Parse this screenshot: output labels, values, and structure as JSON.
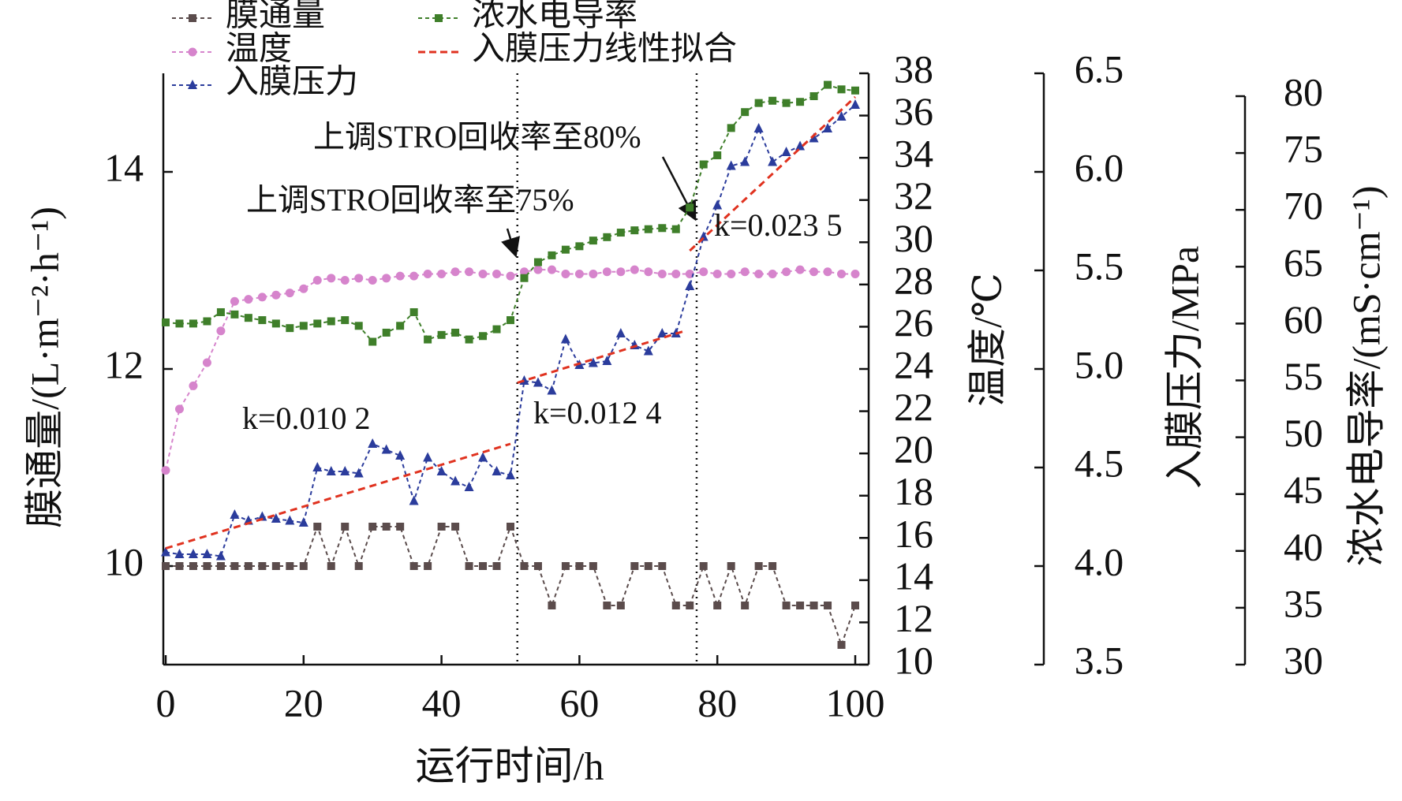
{
  "chart_data": {
    "type": "line",
    "x_label": "运行时间/h",
    "y_label": "膜通量/(L·m⁻²·h⁻¹)",
    "y2_label": "温度/℃",
    "y3_label": "入膜压力/MPa",
    "y4_label": "浓水电导率/(mS·cm⁻¹)",
    "x": [
      0,
      2,
      4,
      6,
      8,
      10,
      12,
      14,
      16,
      18,
      20,
      22,
      24,
      26,
      28,
      30,
      32,
      34,
      36,
      38,
      40,
      42,
      44,
      46,
      48,
      50,
      52,
      54,
      56,
      58,
      60,
      62,
      64,
      66,
      68,
      70,
      72,
      74,
      76,
      78,
      80,
      82,
      84,
      86,
      88,
      90,
      92,
      94,
      96,
      98,
      100
    ],
    "xlim": [
      0,
      100
    ],
    "xticks": [
      0,
      20,
      40,
      60,
      80,
      100
    ],
    "ylim": [
      9,
      15
    ],
    "yticks": [
      10,
      12,
      14
    ],
    "y2lim": [
      10,
      38
    ],
    "y2ticks": [
      10,
      12,
      14,
      16,
      18,
      20,
      22,
      24,
      26,
      28,
      30,
      32,
      34,
      36,
      38
    ],
    "y3lim": [
      3.5,
      6.5
    ],
    "y3ticks": [
      3.5,
      {
        "value": 4,
        "label": "4.0"
      },
      4.5,
      {
        "value": 5,
        "label": "5.0"
      },
      5.5,
      {
        "value": 6,
        "label": "6.0"
      },
      6.5
    ],
    "y4lim": [
      30,
      80
    ],
    "y4ticks": [
      30,
      35,
      40,
      45,
      50,
      55,
      60,
      65,
      70,
      75,
      80
    ],
    "series": [
      {
        "name": "膜通量",
        "color": "#5b4c4c",
        "marker": "square",
        "axis": "y",
        "values": [
          10,
          10,
          10,
          10,
          10,
          10,
          10,
          10,
          10,
          10,
          10,
          10.4,
          10,
          10.4,
          10,
          10.4,
          10.4,
          10.4,
          10,
          10,
          10.4,
          10.4,
          10,
          10,
          10,
          10.4,
          10,
          10,
          9.6,
          10,
          10,
          10,
          9.6,
          9.6,
          10,
          10,
          10,
          9.6,
          9.6,
          10,
          9.6,
          10,
          9.6,
          10,
          10,
          9.6,
          9.6,
          9.6,
          9.6,
          9.2,
          9.6
        ]
      },
      {
        "name": "温度",
        "color": "#d684cc",
        "marker": "circle",
        "axis": "y2",
        "values": [
          19.2,
          22.1,
          23.2,
          24.3,
          25.8,
          27.2,
          27.3,
          27.4,
          27.5,
          27.6,
          27.8,
          28.2,
          28.3,
          28.2,
          28.3,
          28.2,
          28.3,
          28.4,
          28.4,
          28.5,
          28.5,
          28.6,
          28.6,
          28.5,
          28.5,
          28.4,
          28.6,
          28.7,
          28.7,
          28.5,
          28.5,
          28.5,
          28.6,
          28.6,
          28.7,
          28.6,
          28.5,
          28.5,
          28.5,
          28.6,
          28.5,
          28.5,
          28.6,
          28.5,
          28.5,
          28.6,
          28.7,
          28.6,
          28.6,
          28.5,
          28.5
        ]
      },
      {
        "name": "入膜压力",
        "color": "#2b3c9c",
        "marker": "triangle",
        "axis": "y3",
        "values": [
          4.07,
          4.06,
          4.06,
          4.06,
          4.05,
          4.26,
          4.23,
          4.25,
          4.24,
          4.23,
          4.22,
          4.5,
          4.48,
          4.48,
          4.47,
          4.62,
          4.59,
          4.56,
          4.33,
          4.55,
          4.48,
          4.43,
          4.4,
          4.55,
          4.48,
          4.46,
          4.94,
          4.93,
          4.89,
          5.15,
          5.02,
          5.03,
          5.04,
          5.18,
          5.12,
          5.09,
          5.18,
          5.18,
          5.42,
          5.67,
          5.83,
          6.03,
          6.05,
          6.22,
          6.05,
          6.1,
          6.13,
          6.17,
          6.22,
          6.28,
          6.34
        ]
      },
      {
        "name": "浓水电导率",
        "color": "#3f7f2a",
        "marker": "square",
        "axis": "y4",
        "values": [
          60.1,
          60,
          60,
          60.2,
          61,
          60.8,
          60.5,
          60.3,
          60,
          59.6,
          59.8,
          60,
          60.2,
          60.3,
          59.8,
          58.4,
          59.2,
          59.8,
          61,
          58.6,
          59,
          59.2,
          58.6,
          58.9,
          59.5,
          60.3,
          64,
          65.4,
          66,
          66.5,
          66.8,
          67.3,
          67.6,
          68,
          68.2,
          68.3,
          68.4,
          68.3,
          70.2,
          74,
          74.8,
          77.2,
          78.6,
          79.4,
          79.6,
          79.4,
          79.5,
          80,
          81,
          80.6,
          80.5
        ]
      },
      {
        "name": "入膜压力线性拟合",
        "color": "#e0321f",
        "marker": "none",
        "axis": "y3",
        "dashed": true,
        "x": [
          0,
          50,
          50,
          51,
          75,
          75,
          76,
          100
        ],
        "values": [
          4.09,
          4.62,
          null,
          4.93,
          5.19,
          null,
          5.6,
          6.38
        ]
      }
    ],
    "vlines": [
      51,
      77
    ],
    "annotations": [
      "上调STRO回收率至80%",
      "上调STRO回收率至75%",
      "k=0.023 5",
      "k=0.010 2",
      "k=0.012 4"
    ]
  }
}
